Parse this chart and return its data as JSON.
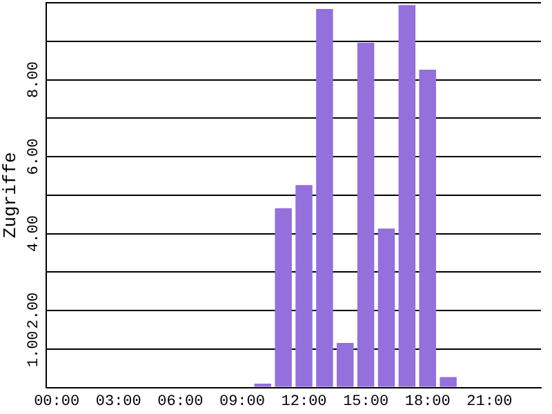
{
  "chart_data": {
    "type": "bar",
    "ylabel": "Zugriffe",
    "categories": [
      "00:00",
      null,
      null,
      "03:00",
      null,
      null,
      "06:00",
      null,
      null,
      "09:00",
      null,
      null,
      "12:00",
      null,
      null,
      "15:00",
      null,
      null,
      "18:00",
      null,
      null,
      "21:00",
      null,
      null
    ],
    "values": [
      0,
      0,
      0,
      0,
      0,
      0,
      0,
      0,
      0,
      0,
      0.1,
      4.66,
      5.26,
      9.84,
      1.16,
      8.96,
      4.13,
      9.94,
      8.26,
      0.27,
      0,
      0,
      0,
      0
    ],
    "color": "#9370db",
    "ylim": [
      0,
      10
    ],
    "yticks": [
      {
        "value": 0,
        "label": null
      },
      {
        "value": 1,
        "label": "1.00"
      },
      {
        "value": 2,
        "label": "2.00"
      },
      {
        "value": 3,
        "label": null
      },
      {
        "value": 4,
        "label": "4.00"
      },
      {
        "value": 5,
        "label": null
      },
      {
        "value": 6,
        "label": "6.00"
      },
      {
        "value": 7,
        "label": null
      },
      {
        "value": 8,
        "label": "8.00"
      },
      {
        "value": 9,
        "label": null
      },
      {
        "value": 10,
        "label": null
      }
    ],
    "grid": "y",
    "legend": false
  }
}
